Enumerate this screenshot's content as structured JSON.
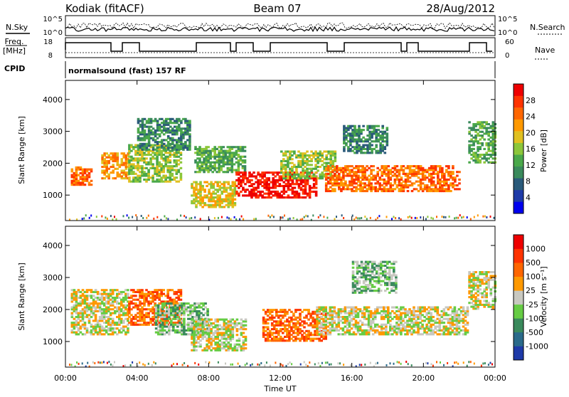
{
  "header": {
    "station": "Kodiak (fitACF)",
    "beam": "Beam 07",
    "date": "28/Aug/2012"
  },
  "strip_labels": {
    "nsky": "N.Sky",
    "nsearch": "N.Search",
    "freq_line1": "Freq.",
    "freq_line2": "[MHz]",
    "nave": "Nave",
    "cpid": "CPID",
    "nsky_ticks": [
      "10^5",
      "10^0"
    ],
    "freq_ticks": [
      "18",
      "8"
    ],
    "nave_ticks": [
      "60",
      "0"
    ],
    "cpid_text": "normalsound (fast) 157 RF"
  },
  "chart_data": [
    {
      "type": "heatmap",
      "title": "",
      "xlabel": "Time UT",
      "ylabel": "Slant Range [km]",
      "x_ticks": [
        "00:00",
        "04:00",
        "08:00",
        "12:00",
        "16:00",
        "20:00",
        "00:00"
      ],
      "y_ticks": [
        1000,
        2000,
        3000,
        4000
      ],
      "xlim": [
        0,
        24
      ],
      "ylim": [
        200,
        4600
      ],
      "colorbar": {
        "label": "Power [dB]",
        "ticks": [
          "28",
          "24",
          "20",
          "16",
          "12",
          "8",
          "4"
        ],
        "colors": [
          "#0000ee",
          "#1e3aa8",
          "#2a5a7a",
          "#3a8a5c",
          "#4aa84a",
          "#8cc63a",
          "#e0c020",
          "#ff9900",
          "#ff6600",
          "#ff3300",
          "#ee0000"
        ]
      },
      "regions": [
        {
          "t0": 0.3,
          "t1": 1.5,
          "r0": 1300,
          "r1": 1900,
          "level": 8
        },
        {
          "t0": 2.0,
          "t1": 3.5,
          "r0": 1500,
          "r1": 2300,
          "level": 7
        },
        {
          "t0": 3.5,
          "t1": 6.5,
          "r0": 1400,
          "r1": 2600,
          "level": 5
        },
        {
          "t0": 4.0,
          "t1": 7.0,
          "r0": 2400,
          "r1": 3400,
          "level": 3
        },
        {
          "t0": 7.0,
          "t1": 9.5,
          "r0": 600,
          "r1": 1400,
          "level": 6
        },
        {
          "t0": 7.2,
          "t1": 10.0,
          "r0": 1700,
          "r1": 2500,
          "level": 4
        },
        {
          "t0": 9.5,
          "t1": 14.0,
          "r0": 900,
          "r1": 1700,
          "level": 10
        },
        {
          "t0": 12.0,
          "t1": 15.0,
          "r0": 1500,
          "r1": 2400,
          "level": 5
        },
        {
          "t0": 14.5,
          "t1": 22.0,
          "r0": 1100,
          "r1": 1900,
          "level": 8
        },
        {
          "t0": 15.5,
          "t1": 18.0,
          "r0": 2300,
          "r1": 3200,
          "level": 3
        },
        {
          "t0": 22.5,
          "t1": 24.0,
          "r0": 2000,
          "r1": 3300,
          "level": 4
        }
      ]
    },
    {
      "type": "heatmap",
      "title": "",
      "xlabel": "Time UT",
      "ylabel": "Slant Range [km]",
      "x_ticks": [
        "00:00",
        "04:00",
        "08:00",
        "12:00",
        "16:00",
        "20:00",
        "00:00"
      ],
      "y_ticks": [
        1000,
        2000,
        3000,
        4000
      ],
      "xlim": [
        0,
        24
      ],
      "ylim": [
        200,
        4600
      ],
      "colorbar": {
        "label": "Velocity [m s⁻¹]",
        "ticks": [
          "1000",
          "500",
          "100",
          "25",
          "-25",
          "-100",
          "-500",
          "-1000"
        ],
        "colors": [
          "#1e3aa8",
          "#2a6a8a",
          "#3a8a5c",
          "#66cc44",
          "#c8c8c0",
          "#ff9900",
          "#ff6600",
          "#ff3300",
          "#ee0000"
        ]
      },
      "regions": [
        {
          "t0": 0.3,
          "t1": 3.5,
          "r0": 1200,
          "r1": 2600,
          "level": 4
        },
        {
          "t0": 3.5,
          "t1": 6.5,
          "r0": 1500,
          "r1": 2600,
          "level": 6
        },
        {
          "t0": 5.0,
          "t1": 8.0,
          "r0": 1200,
          "r1": 2200,
          "level": 3
        },
        {
          "t0": 7.0,
          "t1": 10.0,
          "r0": 700,
          "r1": 1700,
          "level": 4
        },
        {
          "t0": 11.0,
          "t1": 14.5,
          "r0": 1000,
          "r1": 2000,
          "level": 6
        },
        {
          "t0": 14.0,
          "t1": 22.5,
          "r0": 1200,
          "r1": 2100,
          "level": 4
        },
        {
          "t0": 16.0,
          "t1": 18.5,
          "r0": 2500,
          "r1": 3500,
          "level": 3
        },
        {
          "t0": 22.5,
          "t1": 24.0,
          "r0": 2000,
          "r1": 3200,
          "level": 4
        }
      ]
    }
  ]
}
